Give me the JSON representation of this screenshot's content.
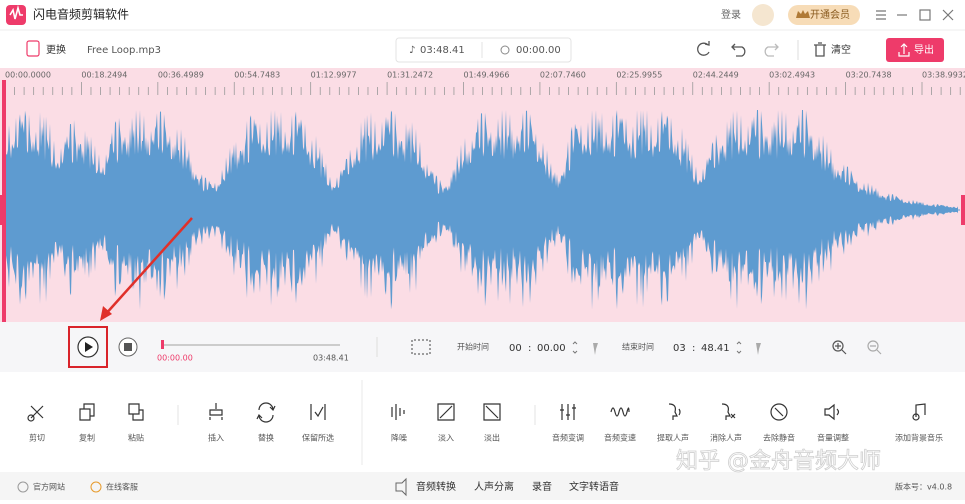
{
  "title_bar": {
    "app_name": "闪电音频剪辑软件",
    "login": "登录",
    "vip": "开通会员"
  },
  "toolbar": {
    "replace": "更换",
    "file_name": "Free Loop.mp3",
    "duration": "03:48.41",
    "position": "00:00.00",
    "clear": "清空",
    "export": "导出"
  },
  "timeline": {
    "labels": [
      "00:00.0000",
      "00:18.2494",
      "00:36.4989",
      "00:54.7483",
      "01:12.9977",
      "01:31.2472",
      "01:49.4966",
      "02:07.7460",
      "02:25.9955",
      "02:44.2449",
      "03:02.4943",
      "03:20.7438",
      "03:38.9932"
    ]
  },
  "player": {
    "current": "00:00.00",
    "total": "03:48.41",
    "start_label": "开始时间",
    "start_min": "00",
    "start_sec": "00.00",
    "separator": ":",
    "end_label": "结束时间",
    "end_min": "03",
    "end_sec": "48.41"
  },
  "tools": [
    "剪切",
    "复制",
    "粘贴",
    "插入",
    "替换",
    "保留所选",
    "降噪",
    "淡入",
    "淡出",
    "音频变调",
    "音频变速",
    "提取人声",
    "消除人声",
    "去除静音",
    "音量调整",
    "添加背景音乐"
  ],
  "footer": {
    "links": [
      "官方网站",
      "在线客服"
    ],
    "features": [
      "音频转换",
      "人声分离",
      "录音",
      "文字转语音"
    ],
    "version": "版本号：v4.0.8"
  },
  "watermark": "知乎 @金舟音频大师"
}
